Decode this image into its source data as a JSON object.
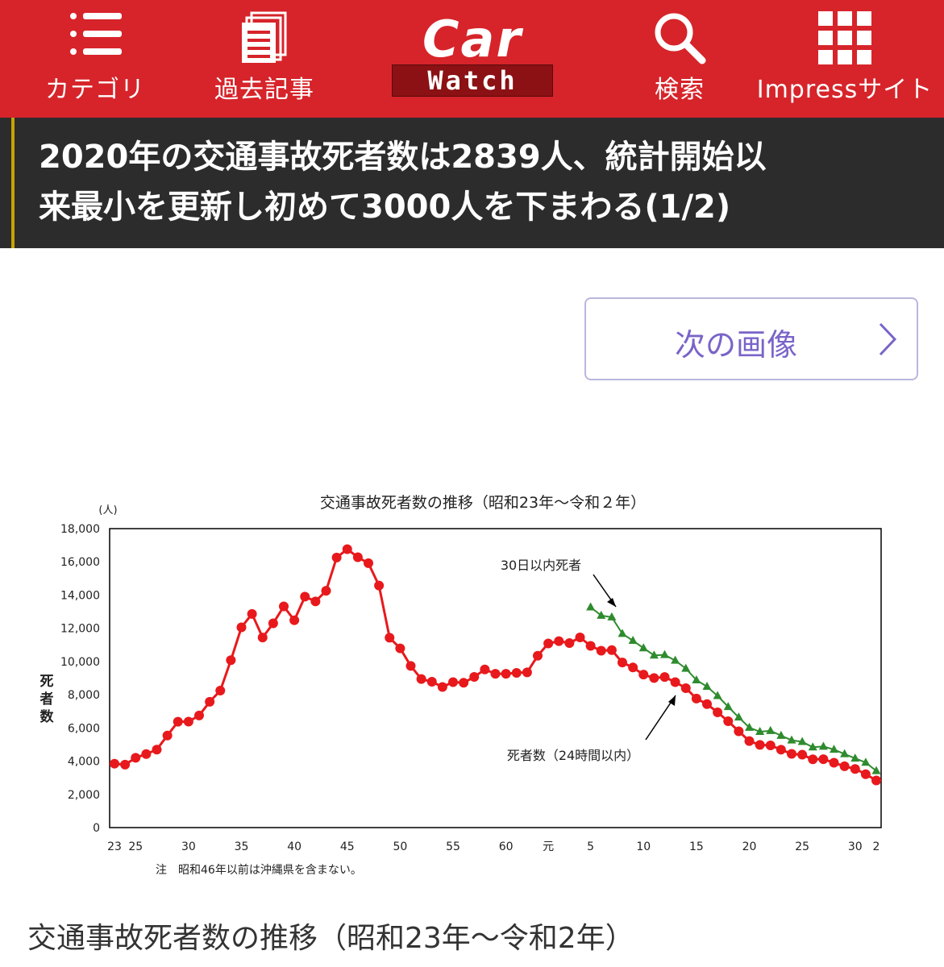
{
  "header": {
    "nav": [
      {
        "label": "カテゴリ",
        "icon": "list-icon"
      },
      {
        "label": "過去記事",
        "icon": "document-icon"
      },
      {
        "label": "検索",
        "icon": "search-icon"
      },
      {
        "label": "Impressサイト",
        "icon": "grid-icon"
      }
    ],
    "logo": {
      "car": "Car",
      "watch": "Watch"
    },
    "brand_color": "#d6242a"
  },
  "article": {
    "title_line1": "2020年の交通事故死者数は2839人、統計開始以",
    "title_line2": "来最小を更新し初めて3000人を下まわる(1/2)",
    "next_button": "次の画像",
    "caption": "交通事故死者数の推移（昭和23年〜令和2年）"
  },
  "chart_data": {
    "type": "line",
    "title": "交通事故死者数の推移（昭和23年～令和２年）",
    "y_unit": "(人)",
    "ylabel": "死者数",
    "ylim": [
      0,
      18000
    ],
    "y_ticks": [
      "0",
      "2,000",
      "4,000",
      "6,000",
      "8,000",
      "10,000",
      "12,000",
      "14,000",
      "16,000",
      "18,000"
    ],
    "x_ticks": [
      {
        "year": 1948,
        "label": "23"
      },
      {
        "year": 1950,
        "label": "25"
      },
      {
        "year": 1955,
        "label": "30"
      },
      {
        "year": 1960,
        "label": "35"
      },
      {
        "year": 1965,
        "label": "40"
      },
      {
        "year": 1970,
        "label": "45"
      },
      {
        "year": 1975,
        "label": "50"
      },
      {
        "year": 1980,
        "label": "55"
      },
      {
        "year": 1985,
        "label": "60"
      },
      {
        "year": 1989,
        "label": "元"
      },
      {
        "year": 1993,
        "label": "5"
      },
      {
        "year": 1998,
        "label": "10"
      },
      {
        "year": 2003,
        "label": "15"
      },
      {
        "year": 2008,
        "label": "20"
      },
      {
        "year": 2013,
        "label": "25"
      },
      {
        "year": 2018,
        "label": "30"
      },
      {
        "year": 2020,
        "label": "2"
      }
    ],
    "xlim": [
      1948,
      2020
    ],
    "note": "注　昭和46年以前は沖縄県を含まない。",
    "series": [
      {
        "name": "死者数（24時間以内）",
        "color": "#e8191c",
        "marker": "circle",
        "x": [
          1948,
          1949,
          1950,
          1951,
          1952,
          1953,
          1954,
          1955,
          1956,
          1957,
          1958,
          1959,
          1960,
          1961,
          1962,
          1963,
          1964,
          1965,
          1966,
          1967,
          1968,
          1969,
          1970,
          1971,
          1972,
          1973,
          1974,
          1975,
          1976,
          1977,
          1978,
          1979,
          1980,
          1981,
          1982,
          1983,
          1984,
          1985,
          1986,
          1987,
          1988,
          1989,
          1990,
          1991,
          1992,
          1993,
          1994,
          1995,
          1996,
          1997,
          1998,
          1999,
          2000,
          2001,
          2002,
          2003,
          2004,
          2005,
          2006,
          2007,
          2008,
          2009,
          2010,
          2011,
          2012,
          2013,
          2014,
          2015,
          2016,
          2017,
          2018,
          2019,
          2020
        ],
        "values": [
          3848,
          3790,
          4202,
          4429,
          4696,
          5544,
          6374,
          6379,
          6751,
          7575,
          8248,
          10079,
          12055,
          12865,
          11445,
          12301,
          13318,
          12484,
          13904,
          13618,
          14256,
          16257,
          16765,
          16278,
          15918,
          14574,
          11432,
          10792,
          9734,
          8945,
          8783,
          8466,
          8760,
          8719,
          9073,
          9520,
          9262,
          9261,
          9317,
          9347,
          10344,
          11086,
          11227,
          11109,
          11452,
          10942,
          10649,
          10684,
          9942,
          9640,
          9211,
          9006,
          9066,
          8757,
          8396,
          7768,
          7436,
          6937,
          6403,
          5796,
          5209,
          4979,
          4948,
          4691,
          4438,
          4388,
          4113,
          4117,
          3904,
          3694,
          3532,
          3215,
          2839
        ]
      },
      {
        "name": "30日以内死者",
        "color": "#2e8b2e",
        "marker": "triangle",
        "x": [
          1993,
          1994,
          1995,
          1996,
          1997,
          1998,
          1999,
          2000,
          2001,
          2002,
          2003,
          2004,
          2005,
          2006,
          2007,
          2008,
          2009,
          2010,
          2011,
          2012,
          2013,
          2014,
          2015,
          2016,
          2017,
          2018,
          2019,
          2020
        ],
        "values": [
          13269,
          12768,
          12670,
          11674,
          11254,
          10805,
          10372,
          10403,
          10060,
          9575,
          8877,
          8492,
          7931,
          7272,
          6639,
          6023,
          5772,
          5828,
          5535,
          5261,
          5165,
          4838,
          4885,
          4698,
          4431,
          4166,
          3920,
          3416
        ]
      }
    ],
    "annotations": [
      {
        "text": "30日以内死者"
      },
      {
        "text": "死者数（24時間以内）"
      }
    ],
    "grid": false,
    "legend": "annotations"
  }
}
